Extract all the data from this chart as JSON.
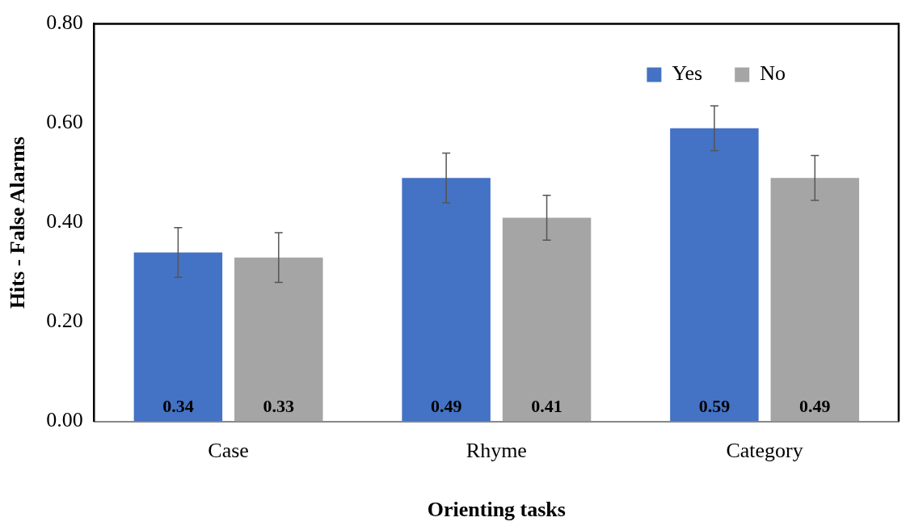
{
  "chart_data": {
    "type": "bar",
    "xlabel": "Orienting tasks",
    "ylabel": "Hits - False Alarms",
    "categories": [
      "Case",
      "Rhyme",
      "Category"
    ],
    "series": [
      {
        "name": "Yes",
        "color": "#4472c4",
        "values": [
          0.34,
          0.49,
          0.59
        ],
        "errors": [
          0.05,
          0.05,
          0.045
        ]
      },
      {
        "name": "No",
        "color": "#a5a5a5",
        "values": [
          0.33,
          0.41,
          0.49
        ],
        "errors": [
          0.05,
          0.045,
          0.045
        ]
      }
    ],
    "ylim": [
      0,
      0.8
    ],
    "yticks": [
      {
        "value": 0,
        "label": "0.00"
      },
      {
        "value": 0.2,
        "label": "0.20"
      },
      {
        "value": 0.4,
        "label": "0.40"
      },
      {
        "value": 0.6,
        "label": "0.60"
      },
      {
        "value": 0.8,
        "label": "0.80"
      }
    ],
    "grid": false,
    "legend": "top right",
    "data_labels": true
  }
}
